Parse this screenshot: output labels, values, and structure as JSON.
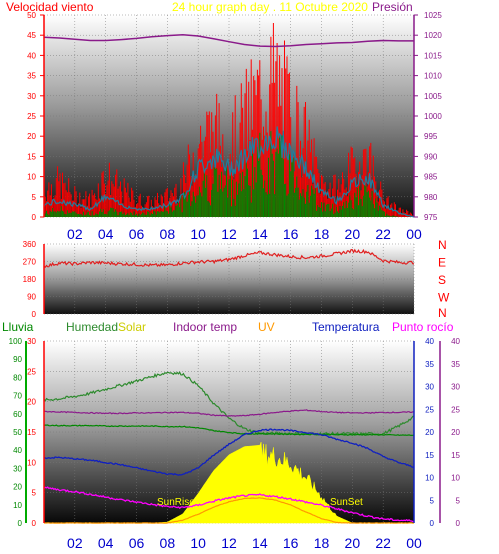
{
  "header": {
    "wind_label": "Velocidad viento",
    "title": "24 hour graph day . 11 Octubre 2020",
    "pressure_label": "Presión"
  },
  "bottom_header": {
    "rain": "Lluvia",
    "humidity": "Humedad",
    "solar": "Solar",
    "indoor": "Indoor temp",
    "uv": "UV",
    "temperature": "Temperatura",
    "dewpoint": "Punto rocío"
  },
  "annotations": {
    "sunrise": "SunRise",
    "sunset": "SunSet"
  },
  "x_ticks": [
    "02",
    "04",
    "06",
    "08",
    "10",
    "12",
    "14",
    "16",
    "18",
    "20",
    "22",
    "00"
  ],
  "colors": {
    "wind": "#ff0000",
    "gust_avg": "#1e7fa0",
    "green": "#008800",
    "pressure": "#8a1a8a",
    "direction": "#e02020",
    "humidity": "#2d8a2d",
    "solar": "#ffff00",
    "indoor": "#8b1a8b",
    "uv": "#ff9900",
    "temperature": "#1020c0",
    "dewpoint": "#ff00ff",
    "axis_blue": "#0000cc"
  },
  "chart_data": [
    {
      "type": "line",
      "name_hint": "wind-pressure",
      "title": "24 hour graph day . 11 Octubre 2020",
      "ylabel": "Velocidad viento",
      "y2label": "Presión",
      "ylim": [
        0,
        50
      ],
      "y2lim": [
        975,
        1025
      ],
      "y_ticks": [
        0,
        5,
        10,
        15,
        20,
        25,
        30,
        35,
        40,
        45,
        50
      ],
      "y2_ticks": [
        975,
        980,
        985,
        990,
        995,
        1000,
        1005,
        1010,
        1015,
        1020,
        1025
      ],
      "x": [
        0,
        1,
        2,
        3,
        4,
        5,
        6,
        7,
        8,
        9,
        10,
        11,
        12,
        13,
        14,
        15,
        16,
        17,
        18,
        19,
        20,
        21,
        22,
        23,
        24
      ],
      "series": [
        {
          "values": [
            8,
            10,
            6,
            5,
            12,
            8,
            5,
            4,
            6,
            10,
            22,
            25,
            20,
            28,
            35,
            40,
            30,
            22,
            10,
            8,
            14,
            18,
            5,
            2,
            1
          ]
        },
        {
          "values": [
            3,
            4,
            3,
            2,
            5,
            3,
            2,
            2,
            3,
            5,
            12,
            15,
            12,
            15,
            18,
            20,
            16,
            12,
            6,
            4,
            8,
            10,
            3,
            1,
            0
          ]
        },
        {
          "values": [
            1,
            2,
            1,
            1,
            2,
            1,
            1,
            1,
            2,
            4,
            8,
            10,
            8,
            10,
            14,
            15,
            12,
            8,
            3,
            2,
            5,
            6,
            1,
            0,
            0
          ]
        },
        {
          "values": [
            1019.5,
            1019.3,
            1019,
            1018.7,
            1018.7,
            1018.9,
            1019.2,
            1019.6,
            1019.9,
            1020.1,
            1019.8,
            1019.1,
            1018.4,
            1017.7,
            1017.3,
            1017.2,
            1017.4,
            1017.7,
            1017.9,
            1018.1,
            1018.2,
            1018.5,
            1018.7,
            1018.6,
            1018.6
          ]
        }
      ]
    },
    {
      "type": "line",
      "name_hint": "wind-direction",
      "y_ticks": [
        0,
        90,
        180,
        270,
        360
      ],
      "y2_ticks": [
        "N",
        "W",
        "S",
        "E",
        "N"
      ],
      "ylim": [
        0,
        360
      ],
      "x": [
        0,
        1,
        2,
        3,
        4,
        5,
        6,
        7,
        8,
        9,
        10,
        11,
        12,
        13,
        14,
        15,
        16,
        17,
        18,
        19,
        20,
        21,
        22,
        23,
        24
      ],
      "values": [
        245,
        262,
        258,
        265,
        262,
        258,
        255,
        250,
        252,
        262,
        268,
        270,
        280,
        300,
        315,
        305,
        295,
        290,
        298,
        310,
        325,
        320,
        275,
        265,
        265
      ]
    },
    {
      "type": "line",
      "name_hint": "temp-humidity-solar",
      "y_left_rain": [
        0,
        10,
        20,
        30,
        40,
        50,
        60,
        70,
        80,
        90,
        100
      ],
      "y_left_humidity": [
        0,
        5,
        10,
        15,
        20,
        25,
        30
      ],
      "y_right_temp": [
        0,
        5,
        10,
        15,
        20,
        25,
        30,
        35,
        40
      ],
      "y_right_dew": [
        0,
        5,
        10,
        15,
        20,
        25,
        30,
        35,
        40
      ],
      "ylim": [
        0,
        40
      ],
      "x": [
        0,
        1,
        2,
        3,
        4,
        5,
        6,
        7,
        8,
        9,
        10,
        11,
        12,
        13,
        14,
        15,
        16,
        17,
        18,
        19,
        20,
        21,
        22,
        23,
        24
      ],
      "series": [
        {
          "values": [
            27,
            27.3,
            27.8,
            28.5,
            29.4,
            30.3,
            31.2,
            32.2,
            33.1,
            32.8,
            30.2,
            26.3,
            23,
            20.7,
            19.7,
            19.7,
            19.7,
            19.6,
            19.6,
            19.6,
            19.6,
            19.6,
            19.6,
            21.3,
            23.3
          ]
        },
        {
          "values": [
            21.5,
            21.4,
            21.4,
            21.4,
            21.3,
            21.3,
            21.3,
            21.3,
            21.2,
            21.2,
            20.9,
            20.3,
            19.9,
            19.6,
            19.6,
            19.6,
            19.5,
            19.5,
            19.5,
            19.4,
            19.4,
            19.4,
            19.4,
            19.3,
            19.3
          ]
        },
        {
          "values": [
            24.5,
            24.4,
            24.3,
            24.2,
            24.1,
            24.1,
            24.2,
            24.2,
            24.3,
            24.3,
            24.1,
            23.7,
            23.5,
            23.6,
            23.9,
            24.3,
            24.6,
            24.8,
            24.5,
            24.3,
            24.2,
            24.2,
            24.3,
            24.3,
            24.4
          ]
        },
        {
          "values": [
            14.3,
            14.4,
            14.1,
            13.8,
            13.3,
            12.8,
            12.1,
            11.4,
            10.8,
            10.6,
            12.1,
            14.9,
            17.3,
            19.4,
            20.4,
            20.6,
            20.3,
            19.9,
            19.4,
            18.4,
            17.6,
            16.4,
            14.6,
            13.3,
            12.3
          ]
        },
        {
          "values": [
            7.8,
            7.3,
            6.9,
            6.3,
            5.7,
            5.1,
            4.6,
            4.1,
            3.6,
            3.4,
            3.9,
            4.8,
            5.5,
            6.0,
            6.2,
            5.8,
            5.3,
            4.6,
            3.9,
            3.1,
            2.3,
            1.5,
            0.9,
            0.6,
            0.5
          ]
        },
        {
          "values": [
            0,
            0,
            0,
            0,
            0,
            0,
            0,
            0,
            0.2,
            2,
            6.5,
            11.5,
            15,
            16.8,
            17.1,
            16.3,
            14.5,
            11,
            6.5,
            1.5,
            0,
            0,
            0,
            0,
            0
          ]
        },
        {
          "values": [
            0,
            0,
            0,
            0,
            0,
            0,
            0,
            0,
            0,
            0.5,
            1.6,
            2.9,
            3.9,
            4.5,
            4.6,
            4.2,
            3.3,
            2,
            0.8,
            0.1,
            0,
            0,
            0,
            0,
            0
          ]
        }
      ]
    }
  ]
}
